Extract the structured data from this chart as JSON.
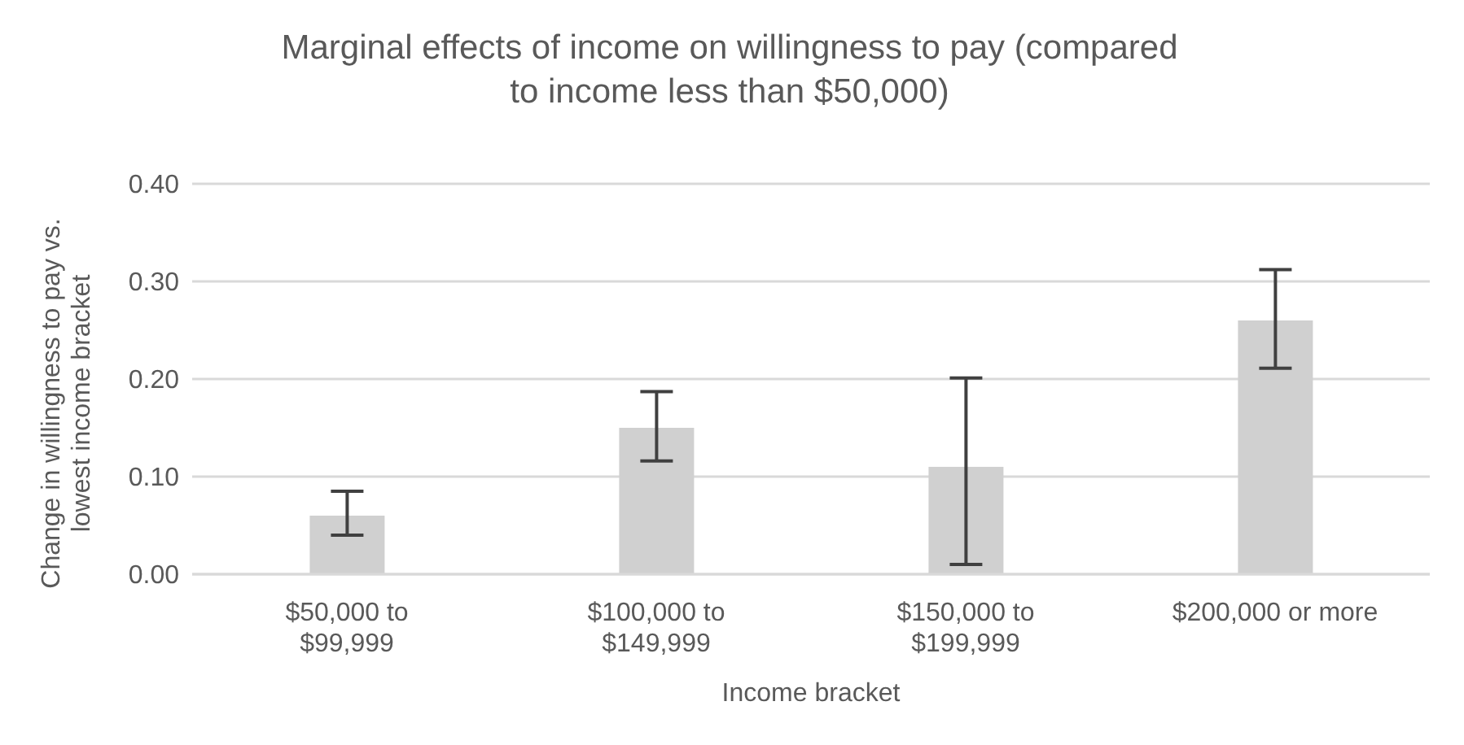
{
  "chart_data": {
    "type": "bar",
    "title": "Marginal effects of income on willingness to pay (compared to income less than $50,000)",
    "xlabel": "Income bracket",
    "ylabel": "Change in willingness to pay vs. lowest income bracket",
    "categories": [
      "$50,000 to $99,999",
      "$100,000 to $149,999",
      "$150,000 to $199,999",
      "$200,000 or more"
    ],
    "values": [
      0.06,
      0.15,
      0.11,
      0.26
    ],
    "errors": [
      [
        0.04,
        0.085
      ],
      [
        0.116,
        0.187
      ],
      [
        0.01,
        0.201
      ],
      [
        0.211,
        0.312
      ]
    ],
    "color": "#d0d0d0",
    "ylim": [
      0,
      0.4
    ],
    "yticks": [
      {
        "value": 0,
        "label": "0.00"
      },
      {
        "value": 0.1,
        "label": "0.10"
      },
      {
        "value": 0.2,
        "label": "0.20"
      },
      {
        "value": 0.3,
        "label": "0.30"
      },
      {
        "value": 0.4,
        "label": "0.40"
      }
    ],
    "grid": "y",
    "legend": false
  }
}
